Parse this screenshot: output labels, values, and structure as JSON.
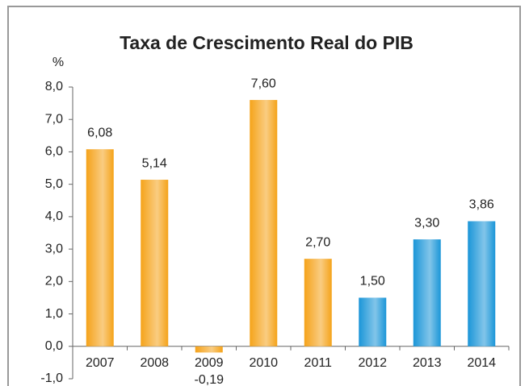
{
  "chart_data": {
    "type": "bar",
    "title": "Taxa de Crescimento Real do PIB",
    "y_label": "%",
    "categories": [
      "2007",
      "2008",
      "2009",
      "2010",
      "2011",
      "2012",
      "2013",
      "2014"
    ],
    "values": [
      6.08,
      5.14,
      -0.19,
      7.6,
      2.7,
      1.5,
      3.3,
      3.86
    ],
    "value_labels": [
      "6,08",
      "5,14",
      "-0,19",
      "7,60",
      "2,70",
      "1,50",
      "3,30",
      "3,86"
    ],
    "colors": [
      "#f5a31a",
      "#f5a31a",
      "#f5a31a",
      "#f5a31a",
      "#f5a31a",
      "#1b96d8",
      "#1b96d8",
      "#1b96d8"
    ],
    "ylim": [
      -1,
      8
    ],
    "yticks": [
      {
        "value": -1,
        "label": "-1,0"
      },
      {
        "value": 0,
        "label": "0,0"
      },
      {
        "value": 1,
        "label": "1,0"
      },
      {
        "value": 2,
        "label": "2,0"
      },
      {
        "value": 3,
        "label": "3,0"
      },
      {
        "value": 4,
        "label": "4,0"
      },
      {
        "value": 5,
        "label": "5,0"
      },
      {
        "value": 6,
        "label": "6,0"
      },
      {
        "value": 7,
        "label": "7,0"
      },
      {
        "value": 8,
        "label": "8,0"
      }
    ],
    "grid": false
  }
}
